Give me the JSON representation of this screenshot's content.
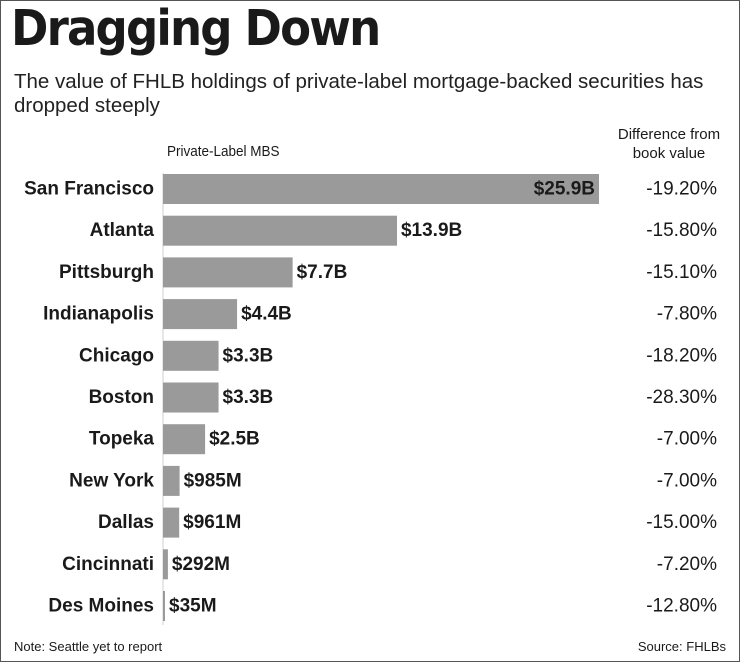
{
  "chart_data": {
    "type": "bar",
    "orientation": "horizontal",
    "title": "Dragging Down",
    "subtitle": "The value of FHLB holdings of private-label mortgage-backed securities has dropped steeply",
    "series_label": "Private-Label MBS",
    "diff_header": [
      "Difference from",
      "book value"
    ],
    "categories": [
      "San Francisco",
      "Atlanta",
      "Pittsburgh",
      "Indianapolis",
      "Chicago",
      "Boston",
      "Topeka",
      "New York",
      "Dallas",
      "Cincinnati",
      "Des Moines"
    ],
    "values_billions": [
      25.9,
      13.9,
      7.7,
      4.4,
      3.3,
      3.3,
      2.5,
      0.985,
      0.961,
      0.292,
      0.035
    ],
    "value_labels": [
      "$25.9B",
      "$13.9B",
      "$7.7B",
      "$4.4B",
      "$3.3B",
      "$3.3B",
      "$2.5B",
      "$985M",
      "$961M",
      "$292M",
      "$35M"
    ],
    "differences": [
      "-19.20%",
      "-15.80%",
      "-15.10%",
      "-7.80%",
      "-18.20%",
      "-28.30%",
      "-7.00%",
      "-7.00%",
      "-15.00%",
      "-7.20%",
      "-12.80%"
    ],
    "xlim": [
      0,
      25.9
    ],
    "note": "Note: Seattle yet to report",
    "source": "Source: FHLBs",
    "colors": {
      "bar": "#9a9a9a",
      "text": "#1a1a1a",
      "border": "#555555"
    }
  }
}
